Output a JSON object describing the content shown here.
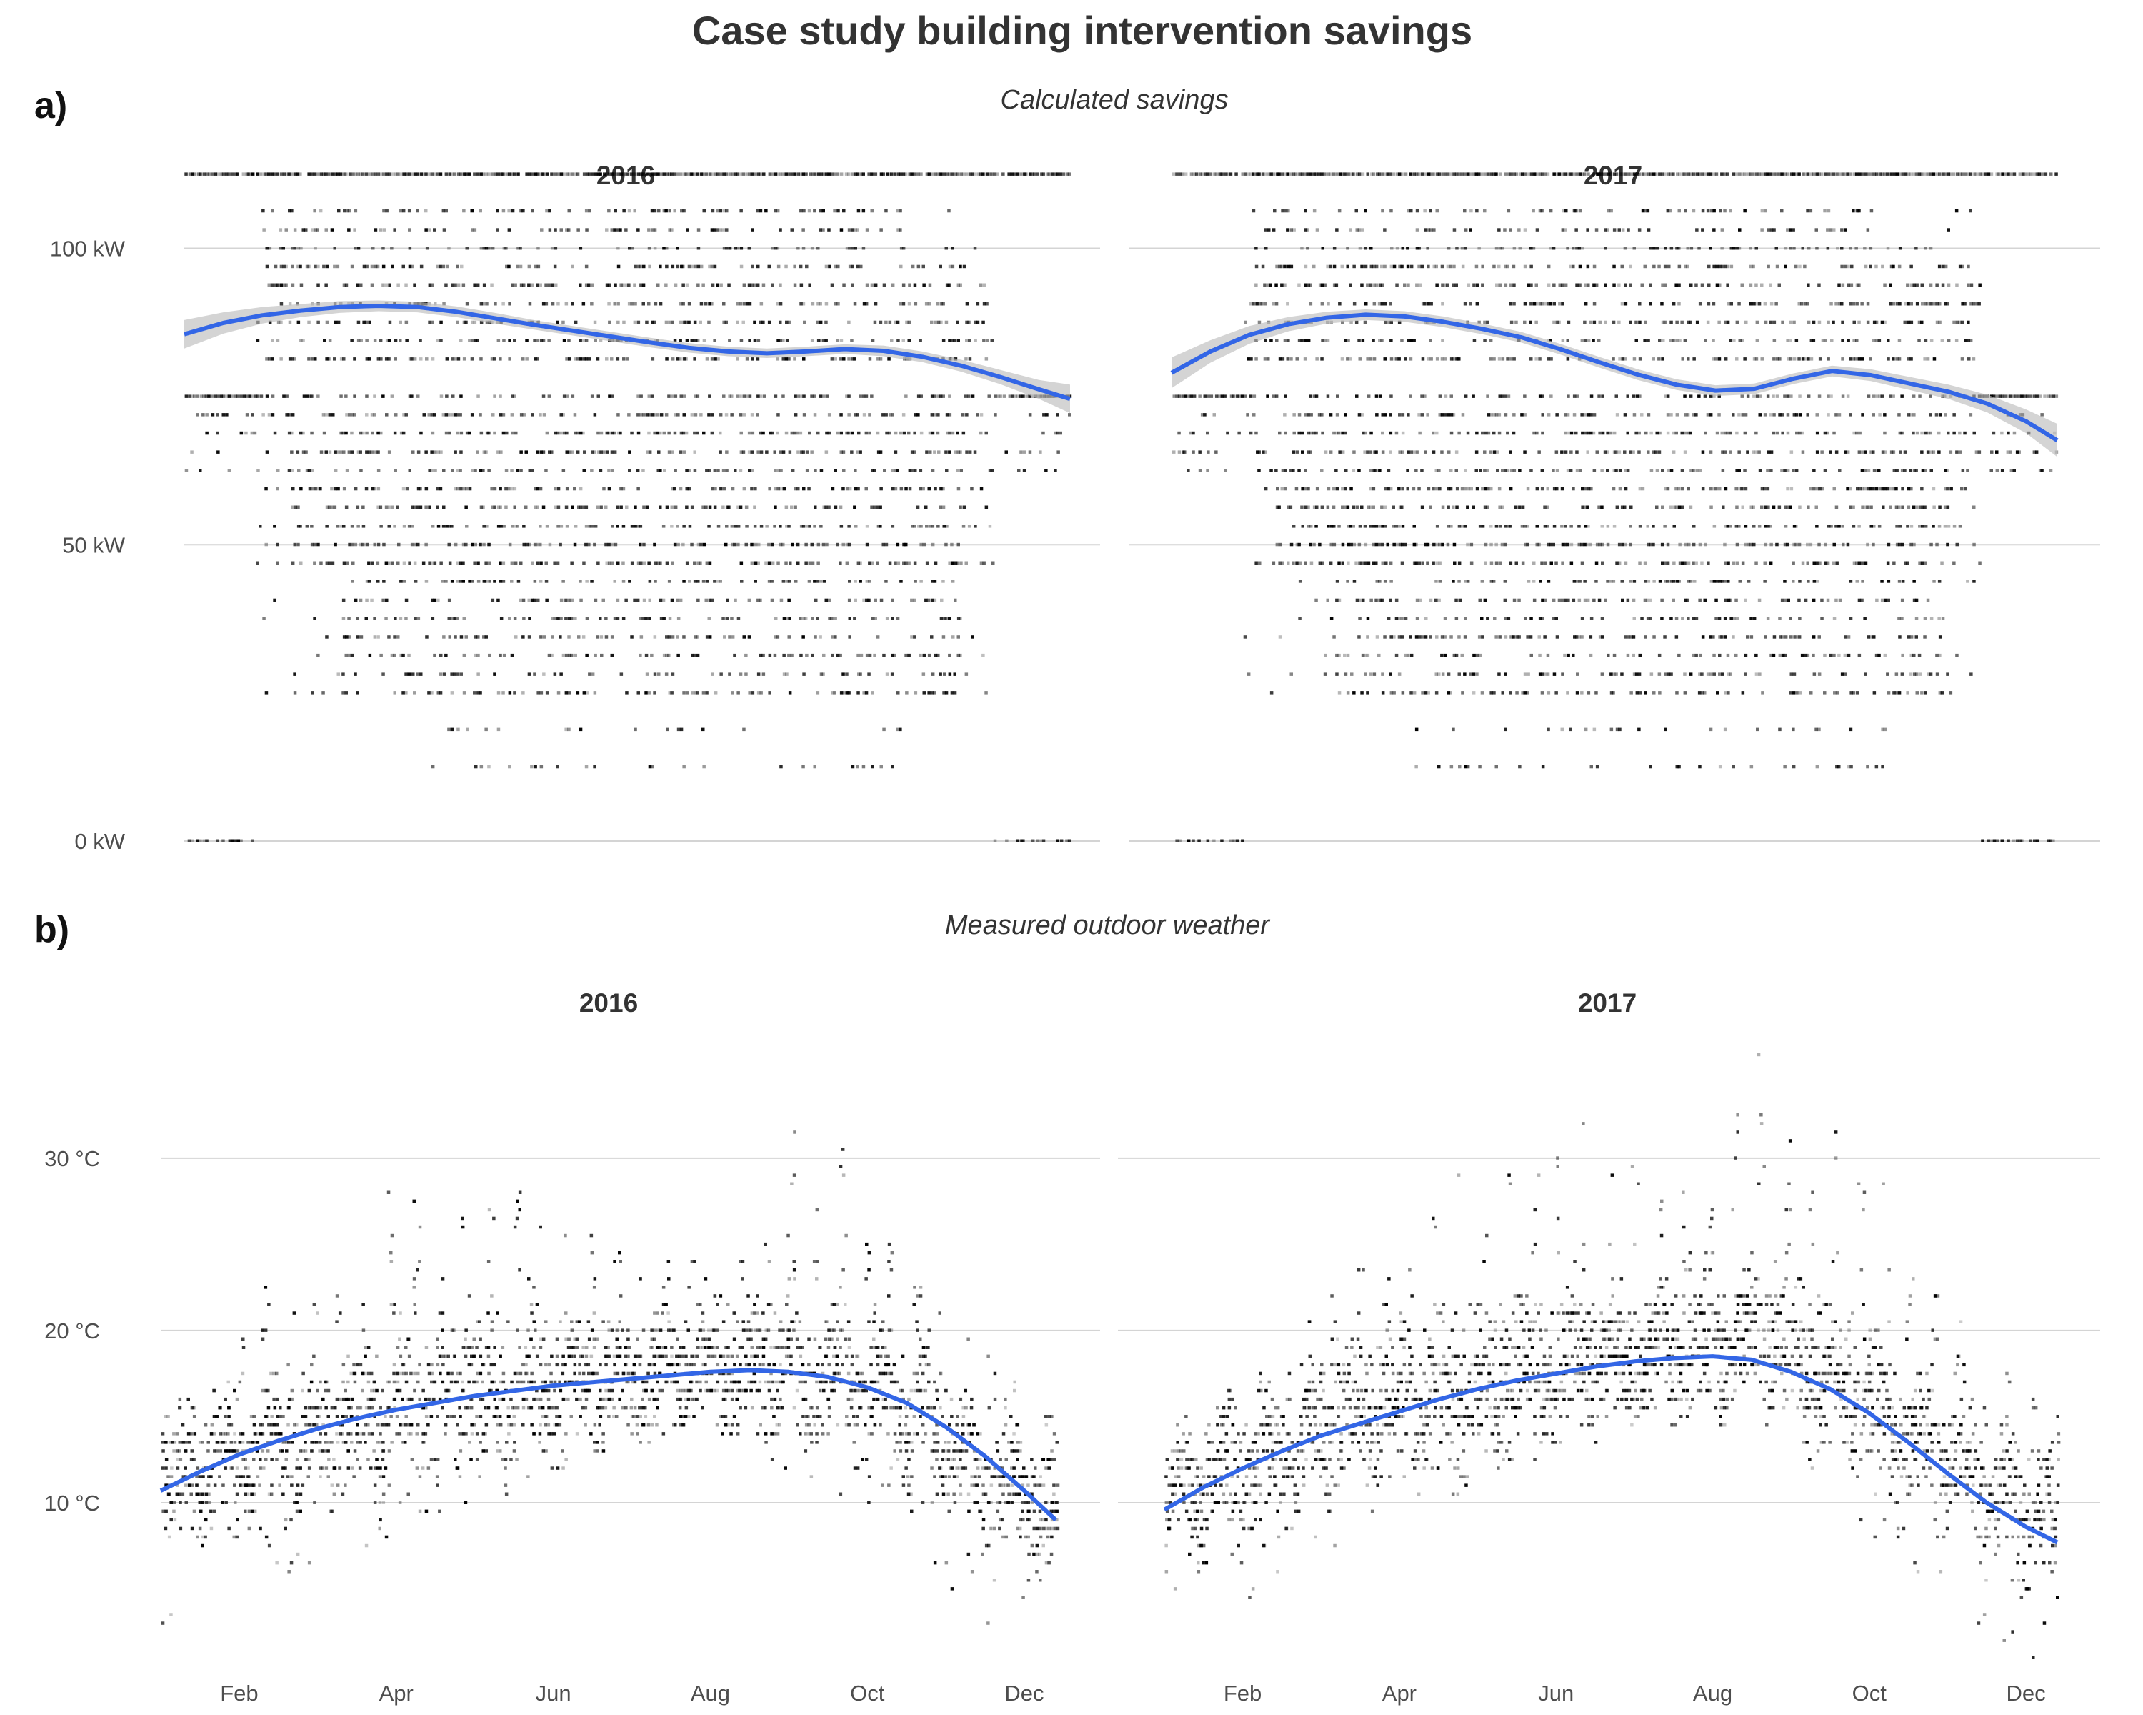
{
  "title": "Case study building intervention savings",
  "panel_tags": [
    "a)",
    "b)"
  ],
  "chart_data": [
    {
      "type": "scatter",
      "panel": "a)",
      "subtitle": "Calculated savings",
      "y_unit": "kW",
      "ylim": [
        0,
        112
      ],
      "y_ticks": [
        {
          "value": 0,
          "label": "0 kW"
        },
        {
          "value": 50,
          "label": "50 kW"
        },
        {
          "value": 100,
          "label": "100 kW"
        }
      ],
      "x_ticks": [],
      "xlim_month": [
        1,
        12.4
      ],
      "grid": "horizontal",
      "point_levels_kw": [
        0,
        12.5,
        18.8,
        25,
        28.1,
        31.3,
        34.4,
        37.5,
        40.6,
        43.8,
        46.9,
        50,
        53.1,
        56.3,
        59.4,
        62.5,
        65.6,
        68.8,
        71.9,
        75,
        81.3,
        84.4,
        87.5,
        90.6,
        93.8,
        96.9,
        100,
        103.1,
        106.3,
        112.5
      ],
      "facets": [
        {
          "name": "2016",
          "smooth": {
            "x_month": [
              1.0,
              1.5,
              2.0,
              2.5,
              3.0,
              3.5,
              4.0,
              4.5,
              5.0,
              5.5,
              6.0,
              6.5,
              7.0,
              7.5,
              8.0,
              8.5,
              9.0,
              9.5,
              10.0,
              10.5,
              11.0,
              11.5,
              12.0,
              12.4
            ],
            "y": [
              85.5,
              87.4,
              88.7,
              89.5,
              90.1,
              90.3,
              90.1,
              89.3,
              88.2,
              87.1,
              86.1,
              85.1,
              84.1,
              83.2,
              82.6,
              82.3,
              82.6,
              83.0,
              82.7,
              81.7,
              80.2,
              78.3,
              76.2,
              74.6
            ],
            "band_halfwidth": [
              2.4,
              1.8,
              1.4,
              1.1,
              1.0,
              0.9,
              0.9,
              0.9,
              0.9,
              0.8,
              0.8,
              0.8,
              0.8,
              0.8,
              0.8,
              0.8,
              0.8,
              0.8,
              0.9,
              0.9,
              1.0,
              1.2,
              1.6,
              2.4
            ]
          }
        },
        {
          "name": "2017",
          "smooth": {
            "x_month": [
              1.0,
              1.5,
              2.0,
              2.5,
              3.0,
              3.5,
              4.0,
              4.5,
              5.0,
              5.5,
              6.0,
              6.5,
              7.0,
              7.5,
              8.0,
              8.5,
              9.0,
              9.5,
              10.0,
              10.5,
              11.0,
              11.5,
              12.0,
              12.4
            ],
            "y": [
              79.0,
              82.6,
              85.4,
              87.2,
              88.3,
              88.8,
              88.5,
              87.6,
              86.4,
              85.0,
              83.0,
              80.8,
              78.7,
              77.0,
              76.0,
              76.3,
              78.0,
              79.3,
              78.6,
              77.2,
              75.8,
              73.8,
              70.8,
              67.6
            ],
            "band_halfwidth": [
              2.6,
              1.9,
              1.5,
              1.2,
              1.0,
              0.9,
              0.9,
              0.9,
              0.9,
              0.9,
              0.9,
              0.9,
              0.9,
              0.9,
              0.9,
              0.9,
              0.9,
              0.9,
              1.0,
              1.1,
              1.2,
              1.5,
              2.0,
              2.8
            ]
          }
        }
      ]
    },
    {
      "type": "scatter",
      "panel": "b)",
      "subtitle": "Measured outdoor weather",
      "y_unit": "°C",
      "ylim": [
        1,
        37.5
      ],
      "y_ticks": [
        {
          "value": 10,
          "label": "10 °C"
        },
        {
          "value": 20,
          "label": "20 °C"
        },
        {
          "value": 30,
          "label": "30 °C"
        }
      ],
      "x_ticks": [
        {
          "month": 2,
          "label": "Feb"
        },
        {
          "month": 4,
          "label": "Apr"
        },
        {
          "month": 6,
          "label": "Jun"
        },
        {
          "month": 8,
          "label": "Aug"
        },
        {
          "month": 10,
          "label": "Oct"
        },
        {
          "month": 12,
          "label": "Dec"
        }
      ],
      "xlim_month": [
        1,
        12.4
      ],
      "grid": "horizontal",
      "facets": [
        {
          "name": "2016",
          "temperature_profile": {
            "x_month": [
              1.0,
              1.5,
              2.0,
              2.5,
              3.0,
              3.5,
              4.0,
              4.5,
              5.0,
              5.5,
              6.0,
              6.5,
              7.0,
              7.5,
              8.0,
              8.5,
              9.0,
              9.5,
              10.0,
              10.5,
              11.0,
              11.5,
              12.0,
              12.4
            ],
            "mean": [
              11.0,
              12.0,
              13.0,
              13.5,
              14.0,
              14.5,
              15.2,
              15.8,
              16.2,
              16.6,
              16.9,
              17.2,
              17.4,
              17.6,
              17.7,
              17.8,
              17.8,
              17.5,
              17.0,
              15.5,
              13.5,
              11.5,
              10.5,
              9.5
            ],
            "spread": [
              2.5,
              2.6,
              2.8,
              3.0,
              3.2,
              3.4,
              3.6,
              3.8,
              3.8,
              3.8,
              3.6,
              3.4,
              3.2,
              3.0,
              3.0,
              3.1,
              3.4,
              3.6,
              3.4,
              3.2,
              3.0,
              3.0,
              3.2,
              3.4
            ],
            "max": [
              16.5,
              17.0,
              20.0,
              26.0,
              24.0,
              22.0,
              30.0,
              27.0,
              26.5,
              30.5,
              28.0,
              26.5,
              25.0,
              24.0,
              24.0,
              24.5,
              32.0,
              35.0,
              26.5,
              23.5,
              21.0,
              19.0,
              18.5,
              16.0
            ],
            "min": [
              2.5,
              5.5,
              6.5,
              5.5,
              6.0,
              6.0,
              7.5,
              9.5,
              10.0,
              11.0,
              12.0,
              13.0,
              13.5,
              14.0,
              14.0,
              13.5,
              11.0,
              10.5,
              10.0,
              8.0,
              4.5,
              2.5,
              1.5,
              3.0
            ]
          },
          "smooth": {
            "x_month": [
              1.0,
              1.5,
              2.0,
              2.5,
              3.0,
              3.5,
              4.0,
              4.5,
              5.0,
              5.5,
              6.0,
              6.5,
              7.0,
              7.5,
              8.0,
              8.5,
              9.0,
              9.5,
              10.0,
              10.5,
              11.0,
              11.5,
              12.0,
              12.4
            ],
            "y": [
              10.7,
              11.8,
              12.8,
              13.6,
              14.3,
              14.9,
              15.4,
              15.8,
              16.2,
              16.5,
              16.8,
              17.0,
              17.2,
              17.4,
              17.6,
              17.7,
              17.6,
              17.3,
              16.7,
              15.8,
              14.4,
              12.7,
              10.7,
              9.0
            ]
          }
        },
        {
          "name": "2017",
          "temperature_profile": {
            "x_month": [
              1.0,
              1.5,
              2.0,
              2.5,
              3.0,
              3.5,
              4.0,
              4.5,
              5.0,
              5.5,
              6.0,
              6.5,
              7.0,
              7.5,
              8.0,
              8.5,
              9.0,
              9.5,
              10.0,
              10.5,
              11.0,
              11.5,
              12.0,
              12.4
            ],
            "mean": [
              10.5,
              11.0,
              12.0,
              12.8,
              14.0,
              15.0,
              15.6,
              16.2,
              16.8,
              17.4,
              18.0,
              18.4,
              18.6,
              18.8,
              18.8,
              19.5,
              19.0,
              17.5,
              15.5,
              13.8,
              12.5,
              11.0,
              9.5,
              8.5
            ],
            "spread": [
              2.8,
              3.0,
              3.2,
              3.2,
              3.4,
              3.6,
              3.6,
              3.8,
              3.8,
              3.8,
              3.6,
              3.4,
              3.2,
              3.2,
              3.4,
              3.8,
              3.8,
              3.6,
              3.4,
              3.2,
              3.2,
              3.2,
              3.4,
              3.4
            ],
            "max": [
              16.0,
              14.0,
              18.0,
              17.5,
              22.0,
              24.5,
              25.0,
              27.0,
              31.5,
              29.0,
              30.0,
              35.5,
              29.5,
              28.5,
              27.0,
              37.5,
              32.0,
              33.0,
              30.0,
              26.0,
              21.5,
              19.0,
              17.0,
              15.5
            ],
            "min": [
              2.0,
              5.0,
              4.5,
              3.5,
              6.0,
              8.0,
              9.0,
              10.0,
              11.0,
              12.0,
              13.0,
              13.5,
              14.0,
              14.0,
              14.5,
              13.5,
              13.0,
              9.0,
              7.5,
              6.0,
              4.5,
              2.0,
              1.0,
              2.5
            ]
          },
          "smooth": {
            "x_month": [
              1.0,
              1.5,
              2.0,
              2.5,
              3.0,
              3.5,
              4.0,
              4.5,
              5.0,
              5.5,
              6.0,
              6.5,
              7.0,
              7.5,
              8.0,
              8.5,
              9.0,
              9.5,
              10.0,
              10.5,
              11.0,
              11.5,
              12.0,
              12.4
            ],
            "y": [
              9.6,
              10.9,
              12.0,
              13.0,
              13.9,
              14.6,
              15.3,
              16.0,
              16.6,
              17.1,
              17.5,
              17.9,
              18.2,
              18.4,
              18.5,
              18.3,
              17.6,
              16.6,
              15.2,
              13.5,
              11.7,
              10.0,
              8.6,
              7.7
            ]
          }
        }
      ]
    }
  ]
}
